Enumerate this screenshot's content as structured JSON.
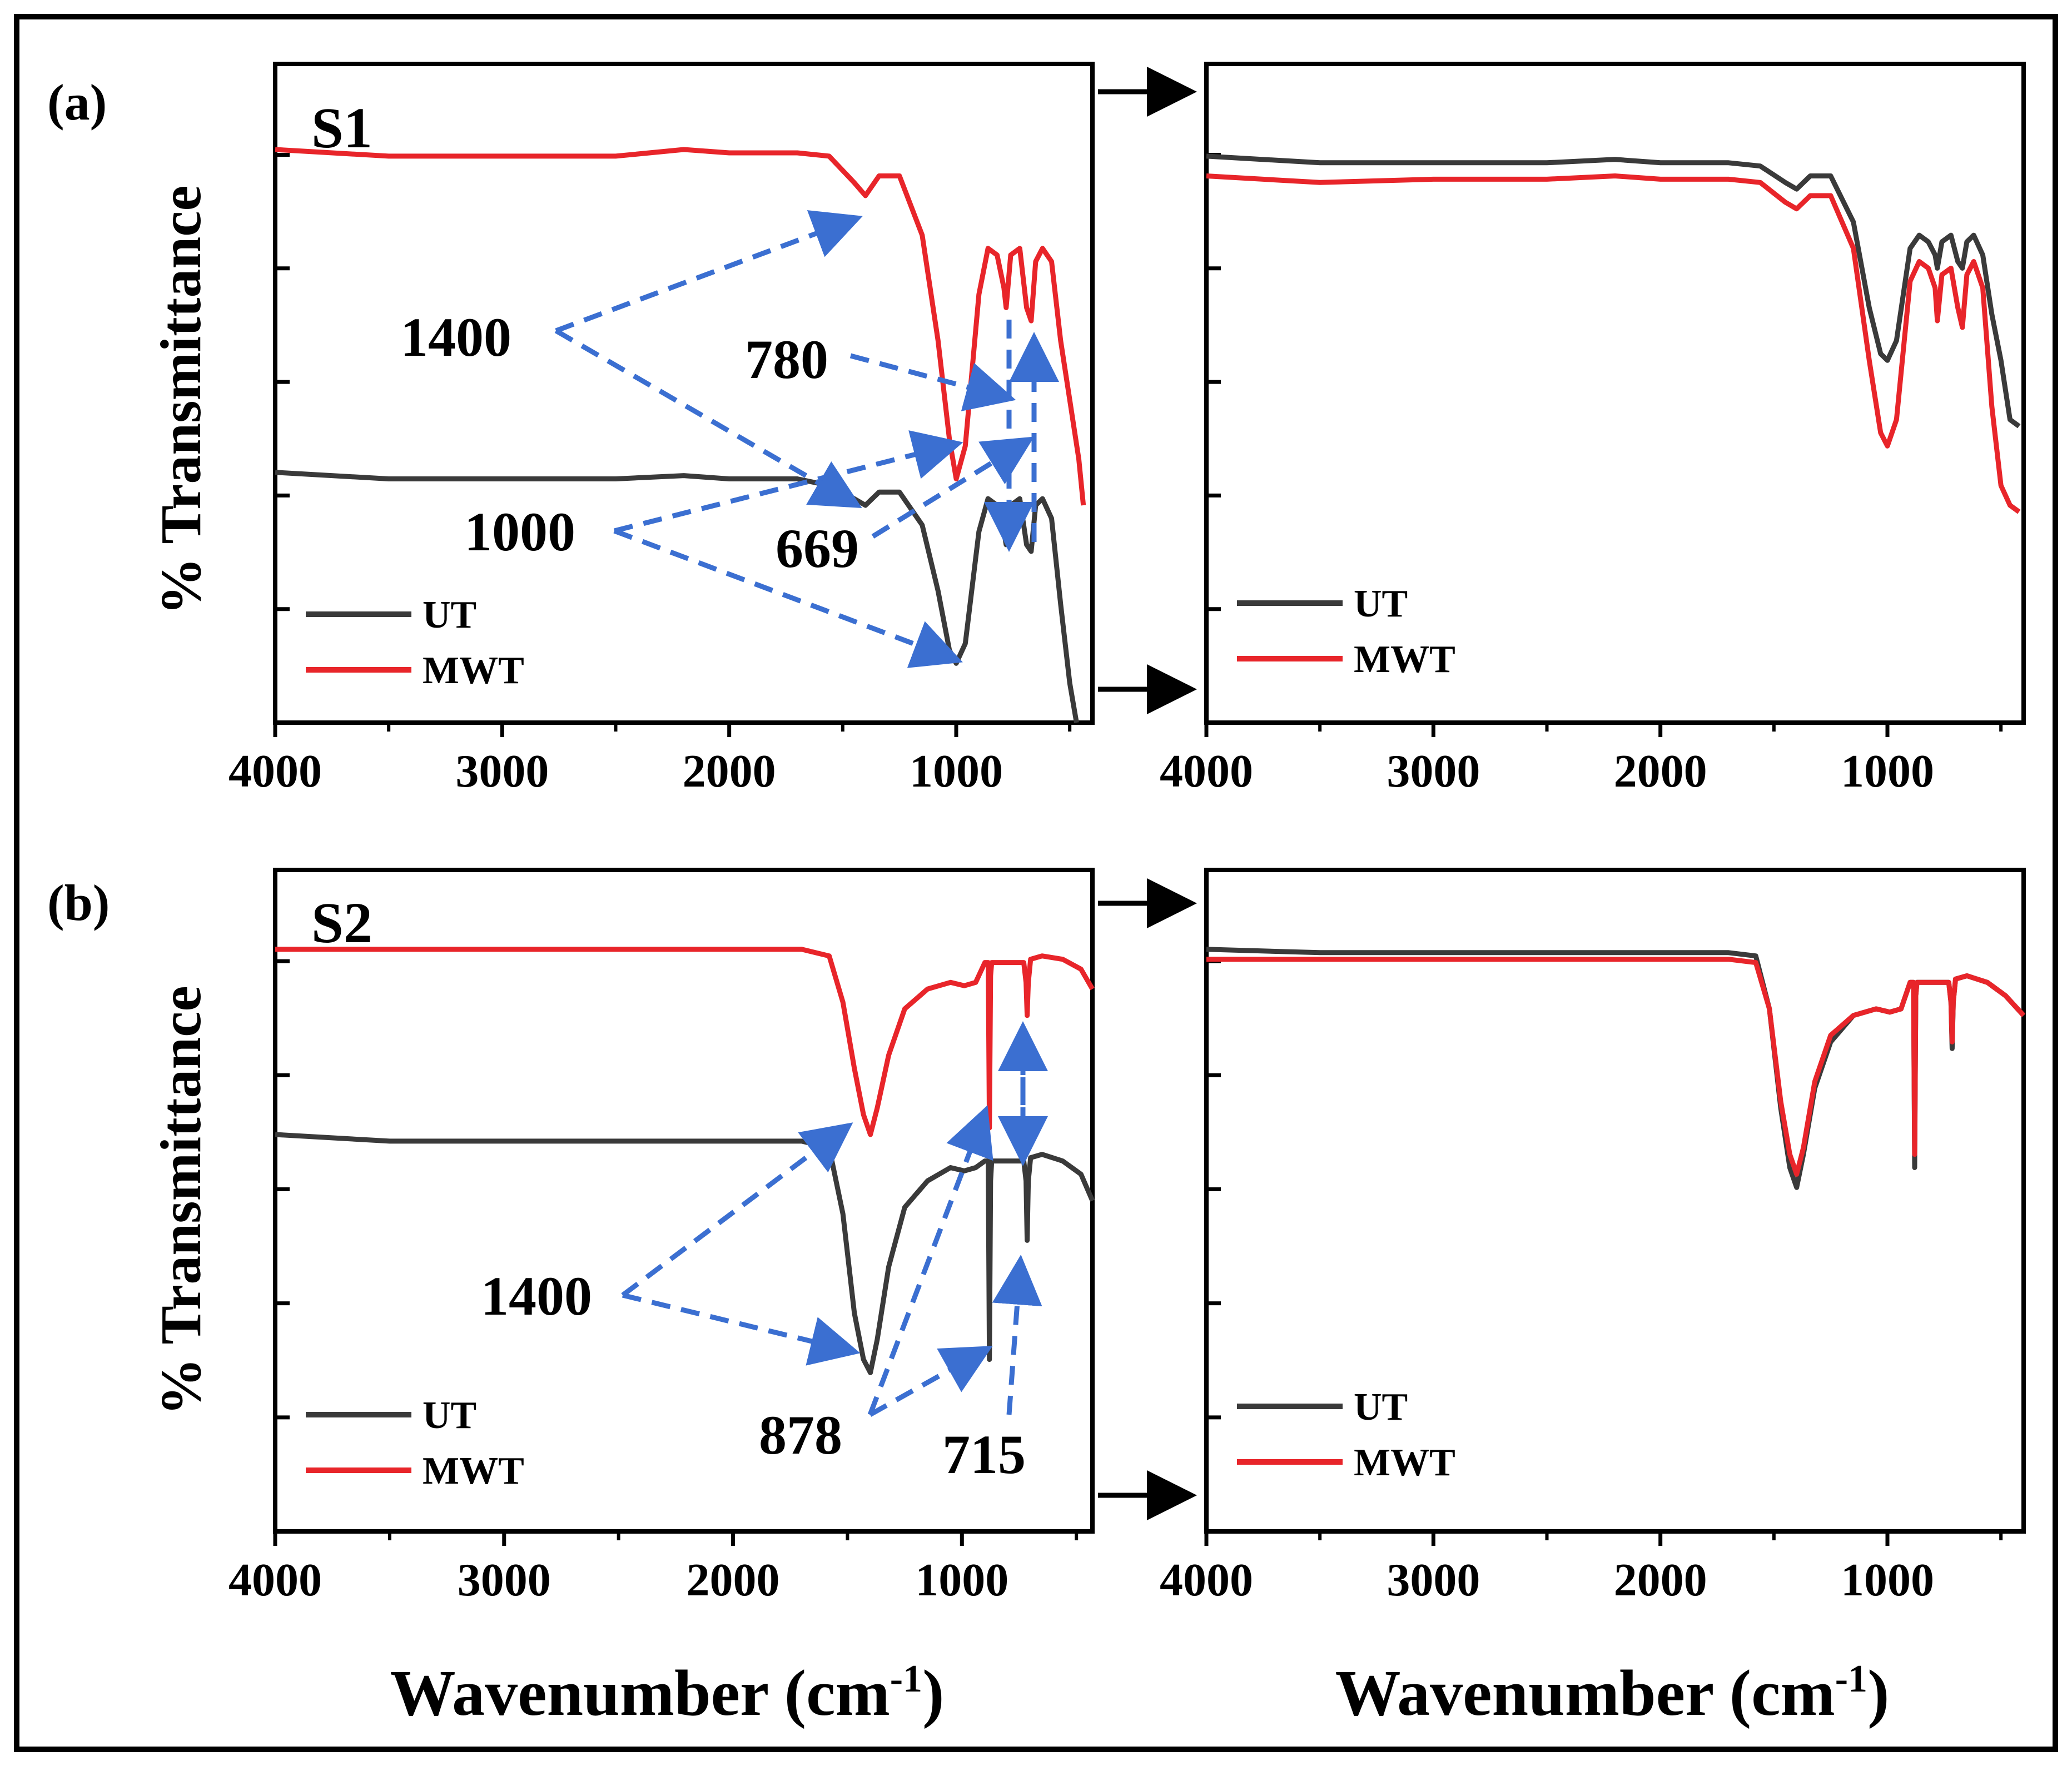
{
  "figure": {
    "rows": [
      {
        "panel_label": "(a)",
        "sample": "S1",
        "ylabel": "% Transmittance",
        "annotations": [
          "1400",
          "780",
          "1000",
          "669"
        ]
      },
      {
        "panel_label": "(b)",
        "sample": "S2",
        "ylabel": "% Transmittance",
        "annotations": [
          "1400",
          "878",
          "715"
        ]
      }
    ],
    "xlabel_main": "Wavenumber (cm",
    "xlabel_sup": "-1",
    "xlabel_close": ")"
  },
  "colors": {
    "UT": "#3a3a3a",
    "MWT": "#e8252a",
    "arrow": "#3b6fd1",
    "frame": "#000000"
  },
  "chart_data": [
    {
      "id": "a-left",
      "type": "line",
      "title": "S1",
      "xlabel": "",
      "ylabel": "% Transmittance",
      "xlim": [
        4000,
        400
      ],
      "xticks": [
        4000,
        3000,
        2000,
        1000
      ],
      "ylim": [
        0,
        1
      ],
      "legend": [
        "UT",
        "MWT"
      ],
      "legend_position": "bottom-left",
      "series": [
        {
          "name": "MWT",
          "x": [
            4000,
            3500,
            3000,
            2500,
            2200,
            2000,
            1700,
            1560,
            1450,
            1400,
            1340,
            1250,
            1150,
            1080,
            1030,
            1000,
            960,
            900,
            860,
            820,
            790,
            780,
            760,
            720,
            690,
            670,
            650,
            620,
            580,
            540,
            500,
            460,
            440
          ],
          "y": [
            0.87,
            0.86,
            0.86,
            0.86,
            0.87,
            0.865,
            0.865,
            0.86,
            0.82,
            0.8,
            0.83,
            0.83,
            0.74,
            0.58,
            0.43,
            0.37,
            0.42,
            0.65,
            0.72,
            0.71,
            0.66,
            0.63,
            0.71,
            0.72,
            0.63,
            0.61,
            0.7,
            0.72,
            0.7,
            0.58,
            0.49,
            0.4,
            0.33
          ]
        },
        {
          "name": "UT",
          "x": [
            4000,
            3500,
            3000,
            2500,
            2200,
            2000,
            1700,
            1560,
            1450,
            1400,
            1340,
            1250,
            1150,
            1080,
            1030,
            1000,
            960,
            900,
            860,
            820,
            790,
            780,
            760,
            720,
            690,
            670,
            650,
            620,
            580,
            540,
            500,
            470
          ],
          "y": [
            0.38,
            0.37,
            0.37,
            0.37,
            0.375,
            0.37,
            0.37,
            0.36,
            0.34,
            0.33,
            0.35,
            0.35,
            0.3,
            0.2,
            0.11,
            0.09,
            0.12,
            0.29,
            0.34,
            0.33,
            0.29,
            0.27,
            0.33,
            0.34,
            0.27,
            0.26,
            0.33,
            0.34,
            0.31,
            0.18,
            0.06,
            0.0
          ]
        }
      ],
      "annotations": [
        {
          "text": "1400",
          "x": 1400
        },
        {
          "text": "780",
          "x": 780
        },
        {
          "text": "1000",
          "x": 1000
        },
        {
          "text": "669",
          "x": 669
        }
      ]
    },
    {
      "id": "a-right",
      "type": "line",
      "title": "",
      "xlabel": "",
      "ylabel": "",
      "xlim": [
        4000,
        400
      ],
      "xticks": [
        4000,
        3000,
        2000,
        1000
      ],
      "ylim": [
        0,
        1
      ],
      "legend": [
        "UT",
        "MWT"
      ],
      "legend_position": "bottom-left",
      "series": [
        {
          "name": "UT",
          "x": [
            4000,
            3500,
            3000,
            2500,
            2200,
            2000,
            1700,
            1560,
            1450,
            1400,
            1340,
            1250,
            1150,
            1080,
            1030,
            1000,
            960,
            900,
            860,
            820,
            790,
            780,
            760,
            720,
            690,
            670,
            650,
            620,
            580,
            540,
            500,
            460,
            420
          ],
          "y": [
            0.86,
            0.85,
            0.85,
            0.85,
            0.855,
            0.85,
            0.85,
            0.845,
            0.82,
            0.81,
            0.83,
            0.83,
            0.76,
            0.63,
            0.56,
            0.55,
            0.58,
            0.72,
            0.74,
            0.73,
            0.71,
            0.69,
            0.73,
            0.74,
            0.7,
            0.69,
            0.73,
            0.74,
            0.71,
            0.62,
            0.55,
            0.46,
            0.45
          ]
        },
        {
          "name": "MWT",
          "x": [
            4000,
            3500,
            3000,
            2500,
            2200,
            2000,
            1700,
            1560,
            1450,
            1400,
            1340,
            1250,
            1150,
            1080,
            1030,
            1000,
            960,
            900,
            860,
            820,
            790,
            780,
            760,
            720,
            690,
            670,
            650,
            620,
            580,
            540,
            500,
            460,
            420
          ],
          "y": [
            0.83,
            0.82,
            0.825,
            0.825,
            0.83,
            0.825,
            0.825,
            0.82,
            0.79,
            0.78,
            0.8,
            0.8,
            0.72,
            0.55,
            0.44,
            0.42,
            0.46,
            0.67,
            0.7,
            0.69,
            0.66,
            0.61,
            0.68,
            0.69,
            0.63,
            0.6,
            0.68,
            0.7,
            0.66,
            0.48,
            0.36,
            0.33,
            0.32
          ]
        }
      ]
    },
    {
      "id": "b-left",
      "type": "line",
      "title": "S2",
      "xlabel": "Wavenumber (cm-1)",
      "ylabel": "% Transmittance",
      "xlim": [
        4000,
        430
      ],
      "xticks": [
        4000,
        3000,
        2000,
        1000
      ],
      "ylim": [
        0,
        1
      ],
      "legend": [
        "UT",
        "MWT"
      ],
      "legend_position": "bottom-left",
      "series": [
        {
          "name": "MWT",
          "x": [
            4000,
            3500,
            3000,
            2500,
            2200,
            2000,
            1700,
            1580,
            1520,
            1470,
            1430,
            1400,
            1370,
            1320,
            1250,
            1150,
            1050,
            990,
            940,
            900,
            885,
            880,
            875,
            870,
            850,
            780,
            730,
            720,
            715,
            710,
            700,
            650,
            560,
            480,
            430
          ],
          "y": [
            0.88,
            0.88,
            0.88,
            0.88,
            0.88,
            0.88,
            0.88,
            0.87,
            0.8,
            0.7,
            0.63,
            0.6,
            0.64,
            0.72,
            0.79,
            0.82,
            0.83,
            0.825,
            0.83,
            0.86,
            0.86,
            0.61,
            0.84,
            0.86,
            0.86,
            0.86,
            0.86,
            0.83,
            0.78,
            0.83,
            0.865,
            0.87,
            0.865,
            0.85,
            0.82
          ]
        },
        {
          "name": "UT",
          "x": [
            4000,
            3500,
            3000,
            2500,
            2200,
            2000,
            1700,
            1580,
            1520,
            1470,
            1430,
            1400,
            1370,
            1320,
            1250,
            1150,
            1050,
            990,
            940,
            900,
            885,
            880,
            875,
            870,
            850,
            780,
            730,
            720,
            715,
            710,
            700,
            650,
            560,
            480,
            430
          ],
          "y": [
            0.6,
            0.59,
            0.59,
            0.59,
            0.59,
            0.59,
            0.59,
            0.58,
            0.48,
            0.33,
            0.26,
            0.24,
            0.29,
            0.4,
            0.49,
            0.53,
            0.55,
            0.545,
            0.55,
            0.56,
            0.56,
            0.26,
            0.53,
            0.56,
            0.56,
            0.56,
            0.56,
            0.53,
            0.44,
            0.53,
            0.565,
            0.57,
            0.56,
            0.54,
            0.5
          ]
        }
      ],
      "annotations": [
        {
          "text": "1400",
          "x": 1400
        },
        {
          "text": "878",
          "x": 878
        },
        {
          "text": "715",
          "x": 715
        }
      ]
    },
    {
      "id": "b-right",
      "type": "line",
      "title": "",
      "xlabel": "Wavenumber (cm-1)",
      "ylabel": "",
      "xlim": [
        4000,
        400
      ],
      "xticks": [
        4000,
        3000,
        2000,
        1000
      ],
      "ylim": [
        0,
        1
      ],
      "legend": [
        "UT",
        "MWT"
      ],
      "legend_position": "bottom-left",
      "series": [
        {
          "name": "UT",
          "x": [
            4000,
            3500,
            3000,
            2500,
            2200,
            2000,
            1700,
            1580,
            1520,
            1470,
            1430,
            1400,
            1370,
            1320,
            1250,
            1150,
            1050,
            990,
            940,
            900,
            885,
            880,
            875,
            870,
            850,
            780,
            730,
            720,
            715,
            710,
            700,
            650,
            560,
            480,
            400
          ],
          "y": [
            0.88,
            0.875,
            0.875,
            0.875,
            0.875,
            0.875,
            0.875,
            0.87,
            0.79,
            0.64,
            0.55,
            0.52,
            0.57,
            0.67,
            0.74,
            0.78,
            0.79,
            0.785,
            0.79,
            0.83,
            0.83,
            0.55,
            0.81,
            0.83,
            0.83,
            0.83,
            0.83,
            0.8,
            0.73,
            0.8,
            0.835,
            0.84,
            0.83,
            0.81,
            0.78
          ]
        },
        {
          "name": "MWT",
          "x": [
            4000,
            3500,
            3000,
            2500,
            2200,
            2000,
            1700,
            1580,
            1520,
            1470,
            1430,
            1400,
            1370,
            1320,
            1250,
            1150,
            1050,
            990,
            940,
            900,
            885,
            880,
            875,
            870,
            850,
            780,
            730,
            720,
            715,
            710,
            700,
            650,
            560,
            480,
            400
          ],
          "y": [
            0.865,
            0.865,
            0.865,
            0.865,
            0.865,
            0.865,
            0.865,
            0.86,
            0.79,
            0.65,
            0.57,
            0.54,
            0.58,
            0.68,
            0.75,
            0.78,
            0.79,
            0.785,
            0.79,
            0.83,
            0.83,
            0.57,
            0.81,
            0.83,
            0.83,
            0.83,
            0.83,
            0.8,
            0.74,
            0.8,
            0.835,
            0.84,
            0.83,
            0.81,
            0.78
          ]
        }
      ]
    }
  ]
}
